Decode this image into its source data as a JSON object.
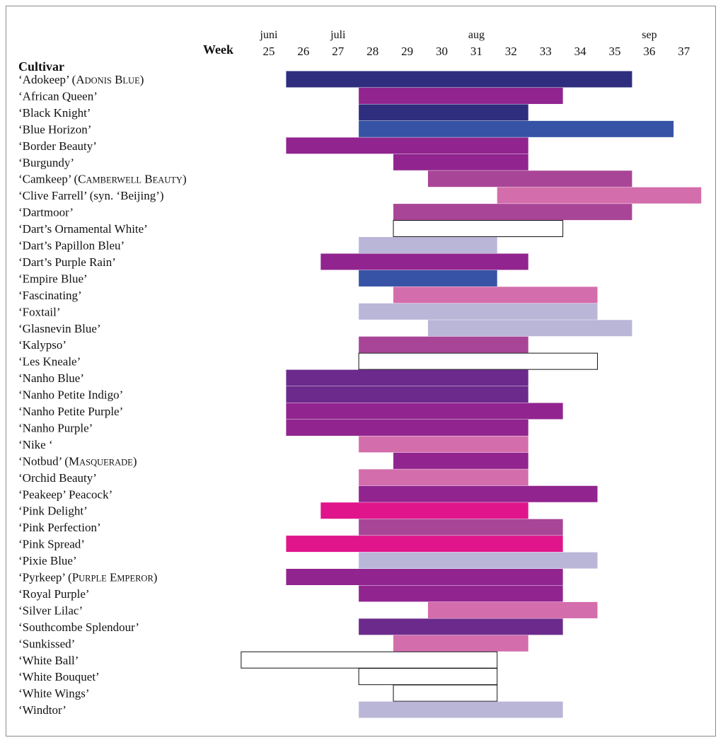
{
  "chart_data": {
    "type": "bar",
    "subtype": "gantt",
    "category_header": "Cultivar",
    "week_header": "Week",
    "weeks": [
      25,
      26,
      27,
      28,
      29,
      30,
      31,
      32,
      33,
      34,
      35,
      36,
      37
    ],
    "months": [
      {
        "label": "juni",
        "week": 25
      },
      {
        "label": "juli",
        "week": 27
      },
      {
        "label": "aug",
        "week": 31
      },
      {
        "label": "sep",
        "week": 36
      }
    ],
    "colors": {
      "navy": "#2e2d7e",
      "blue": "#3653a5",
      "purple": "#91248f",
      "violet": "#6c2a8c",
      "mauve": "#a94597",
      "pink": "#d46dac",
      "magenta": "#e0158b",
      "lilac": "#bab6d8",
      "white": "#ffffff"
    },
    "cultivars": [
      {
        "label": "‘Adokeep’ (",
        "alt_name": "Adonis Blue",
        "label_end": ")",
        "start": 25.5,
        "end": 35.5,
        "color": "navy"
      },
      {
        "label": "‘African Queen’",
        "start": 27.6,
        "end": 33.5,
        "color": "purple"
      },
      {
        "label": "‘Black Knight’",
        "start": 27.6,
        "end": 32.5,
        "color": "navy"
      },
      {
        "label": "‘Blue Horizon’",
        "start": 27.6,
        "end": 36.7,
        "color": "blue"
      },
      {
        "label": "‘Border Beauty’",
        "start": 25.5,
        "end": 32.5,
        "color": "purple"
      },
      {
        "label": "‘Burgundy’",
        "start": 28.6,
        "end": 32.5,
        "color": "purple"
      },
      {
        "label": "‘Camkeep’ (",
        "alt_name": "Camberwell Beauty",
        "label_end": ")",
        "start": 29.6,
        "end": 35.5,
        "color": "mauve"
      },
      {
        "label": "‘Clive Farrell’ (syn. ‘Beijing’)",
        "start": 31.6,
        "end": 37.5,
        "color": "pink"
      },
      {
        "label": "‘Dartmoor’",
        "start": 28.6,
        "end": 35.5,
        "color": "mauve"
      },
      {
        "label": "‘Dart’s Ornamental White’",
        "start": 28.6,
        "end": 33.5,
        "color": "white"
      },
      {
        "label": "‘Dart’s Papillon Bleu’",
        "start": 27.6,
        "end": 31.6,
        "color": "lilac"
      },
      {
        "label": "‘Dart’s Purple Rain’",
        "start": 26.5,
        "end": 32.5,
        "color": "purple"
      },
      {
        "label": "‘Empire Blue’",
        "start": 27.6,
        "end": 31.6,
        "color": "blue"
      },
      {
        "label": "‘Fascinating’",
        "start": 28.6,
        "end": 34.5,
        "color": "pink"
      },
      {
        "label": "‘Foxtail’",
        "start": 27.6,
        "end": 34.5,
        "color": "lilac"
      },
      {
        "label": "‘Glasnevin Blue’",
        "start": 29.6,
        "end": 35.5,
        "color": "lilac"
      },
      {
        "label": "‘Kalypso’",
        "start": 27.6,
        "end": 32.5,
        "color": "mauve"
      },
      {
        "label": "‘Les Kneale’",
        "start": 27.6,
        "end": 34.5,
        "color": "white"
      },
      {
        "label": "‘Nanho Blue’",
        "start": 25.5,
        "end": 32.5,
        "color": "violet"
      },
      {
        "label": "‘Nanho Petite Indigo’",
        "start": 25.5,
        "end": 32.5,
        "color": "violet"
      },
      {
        "label": "‘Nanho Petite Purple’",
        "start": 25.5,
        "end": 33.5,
        "color": "purple"
      },
      {
        "label": "‘Nanho Purple’",
        "start": 25.5,
        "end": 32.5,
        "color": "purple"
      },
      {
        "label": "‘Nike ‘",
        "start": 27.6,
        "end": 32.5,
        "color": "pink"
      },
      {
        "label": "‘Notbud’ (",
        "alt_name": "Masquerade",
        "label_end": ")",
        "start": 28.6,
        "end": 32.5,
        "color": "purple"
      },
      {
        "label": "‘Orchid Beauty’",
        "start": 27.6,
        "end": 32.5,
        "color": "pink"
      },
      {
        "label": "‘Peakeep’ Peacock’",
        "start": 27.6,
        "end": 34.5,
        "color": "purple"
      },
      {
        "label": "‘Pink Delight’",
        "start": 26.5,
        "end": 32.5,
        "color": "magenta"
      },
      {
        "label": "‘Pink Perfection’",
        "start": 27.6,
        "end": 33.5,
        "color": "mauve"
      },
      {
        "label": "‘Pink Spread’",
        "start": 25.5,
        "end": 33.5,
        "color": "magenta"
      },
      {
        "label": "‘Pixie Blue’",
        "start": 27.6,
        "end": 34.5,
        "color": "lilac"
      },
      {
        "label": "‘Pyrkeep’ (",
        "alt_name": "Purple Emperor",
        "label_end": ")",
        "start": 25.5,
        "end": 33.5,
        "color": "purple"
      },
      {
        "label": "‘Royal Purple’",
        "start": 27.6,
        "end": 33.5,
        "color": "purple"
      },
      {
        "label": "‘Silver Lilac’",
        "start": 29.6,
        "end": 34.5,
        "color": "pink"
      },
      {
        "label": "‘Southcombe Splendour’",
        "start": 27.6,
        "end": 33.5,
        "color": "violet"
      },
      {
        "label": "‘Sunkissed’",
        "start": 28.6,
        "end": 32.5,
        "color": "pink"
      },
      {
        "label": "‘White Ball’",
        "start": 24.2,
        "end": 31.6,
        "color": "white"
      },
      {
        "label": "‘White Bouquet’",
        "start": 27.6,
        "end": 31.6,
        "color": "white"
      },
      {
        "label": "‘White Wings’",
        "start": 28.6,
        "end": 31.6,
        "color": "white"
      },
      {
        "label": "‘Windtor’",
        "start": 27.6,
        "end": 33.5,
        "color": "lilac"
      }
    ]
  }
}
